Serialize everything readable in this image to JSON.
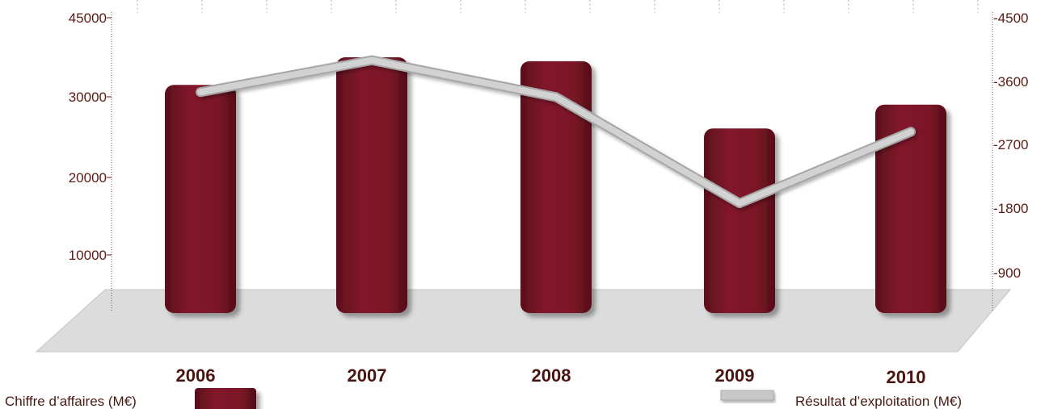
{
  "chart_data": {
    "type": "bar",
    "categories": [
      "2006",
      "2007",
      "2008",
      "2009",
      "2010"
    ],
    "series": [
      {
        "name": "Chiffre d’affaires (M€)",
        "axis": "left",
        "kind": "bar",
        "values": [
          31500,
          35000,
          34500,
          26000,
          29000
        ]
      },
      {
        "name": "Résultat d’exploitation (M€)",
        "axis": "right",
        "kind": "line",
        "values": [
          3450,
          3900,
          3380,
          1880,
          2890
        ]
      }
    ],
    "y_left": {
      "ticks": [
        "45000",
        "30000",
        "20000",
        "10000"
      ]
    },
    "y_right": {
      "ticks": [
        "-4500",
        "-3600",
        "-2700",
        "-1800",
        "-900"
      ]
    },
    "grid": true,
    "legend": {
      "placement": "bottom"
    },
    "colors": {
      "bar": "#7a1726",
      "line": "#c8c8c8",
      "floor": "#dcdcdc",
      "text": "#5a1a12"
    }
  }
}
